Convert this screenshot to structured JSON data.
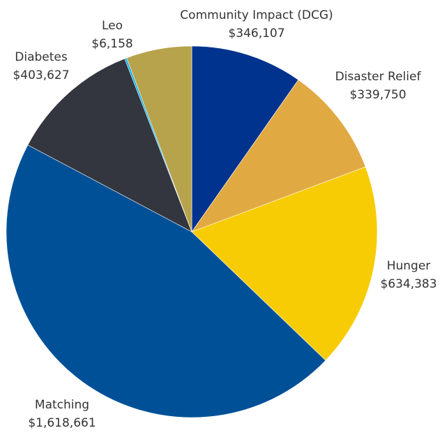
{
  "chart_data": {
    "type": "pie",
    "title": "",
    "start_angle_deg": 0,
    "direction": "clockwise",
    "slices": [
      {
        "label": "Community Impact (DCG)",
        "value_label": "$346,107",
        "value": 346107,
        "color": "#00338D"
      },
      {
        "label": "Disaster Relief",
        "value_label": "$339,750",
        "value": 339750,
        "color": "#E1A942"
      },
      {
        "label": "Hunger",
        "value_label": "$634,383",
        "value": 634383,
        "color": "#F8CC05"
      },
      {
        "label": "Matching",
        "value_label": "$1,618,661",
        "value": 1618661,
        "color": "#005098"
      },
      {
        "label": "Diabetes",
        "value_label": "$403,627",
        "value": 403627,
        "color": "#33363F"
      },
      {
        "label": "Leo",
        "value_label": "$6,158",
        "value": 6158,
        "color": "#00AEEF"
      },
      {
        "label": "",
        "value_label": "",
        "value": 203000,
        "color": "#B7A34C"
      }
    ]
  }
}
